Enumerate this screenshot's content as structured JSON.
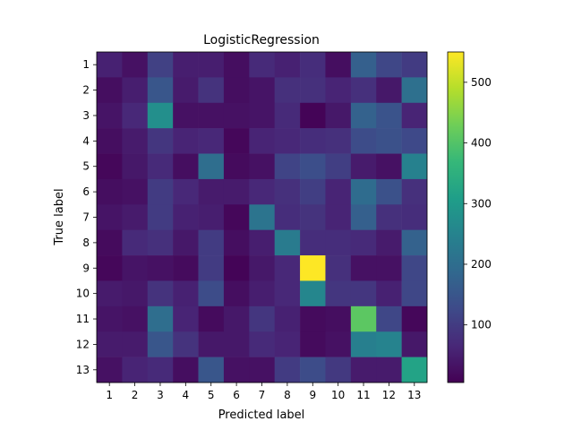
{
  "chart_data": {
    "type": "heatmap",
    "title": "LogisticRegression",
    "xlabel": "Predicted label",
    "ylabel": "True label",
    "x_categories": [
      "1",
      "2",
      "3",
      "4",
      "5",
      "6",
      "7",
      "8",
      "9",
      "10",
      "11",
      "12",
      "13"
    ],
    "y_categories": [
      "1",
      "2",
      "3",
      "4",
      "5",
      "6",
      "7",
      "8",
      "9",
      "10",
      "11",
      "12",
      "13"
    ],
    "values": [
      [
        55,
        30,
        110,
        50,
        50,
        25,
        70,
        55,
        75,
        25,
        170,
        120,
        100
      ],
      [
        25,
        50,
        150,
        45,
        85,
        25,
        35,
        80,
        80,
        60,
        80,
        40,
        205
      ],
      [
        35,
        65,
        275,
        30,
        30,
        30,
        35,
        70,
        10,
        40,
        175,
        145,
        60
      ],
      [
        25,
        45,
        90,
        60,
        65,
        15,
        60,
        65,
        75,
        80,
        130,
        140,
        125
      ],
      [
        15,
        40,
        70,
        25,
        200,
        20,
        30,
        115,
        135,
        105,
        45,
        30,
        245
      ],
      [
        25,
        30,
        100,
        65,
        45,
        45,
        65,
        80,
        105,
        60,
        195,
        140,
        80
      ],
      [
        35,
        45,
        100,
        55,
        50,
        15,
        215,
        75,
        85,
        60,
        170,
        80,
        75
      ],
      [
        20,
        70,
        80,
        40,
        100,
        25,
        50,
        230,
        75,
        75,
        70,
        45,
        175
      ],
      [
        15,
        35,
        30,
        20,
        100,
        10,
        40,
        65,
        550,
        80,
        30,
        30,
        120
      ],
      [
        45,
        40,
        85,
        55,
        130,
        25,
        50,
        65,
        255,
        90,
        90,
        55,
        120
      ],
      [
        35,
        30,
        200,
        60,
        20,
        40,
        90,
        55,
        20,
        25,
        410,
        120,
        15
      ],
      [
        45,
        45,
        150,
        85,
        40,
        40,
        70,
        60,
        20,
        30,
        240,
        250,
        40
      ],
      [
        30,
        60,
        70,
        25,
        150,
        30,
        30,
        100,
        130,
        95,
        45,
        45,
        320
      ]
    ],
    "colorbar": {
      "min": 5,
      "max": 550,
      "ticks": [
        100,
        200,
        300,
        400,
        500
      ],
      "colormap": "viridis"
    },
    "grid": false
  }
}
